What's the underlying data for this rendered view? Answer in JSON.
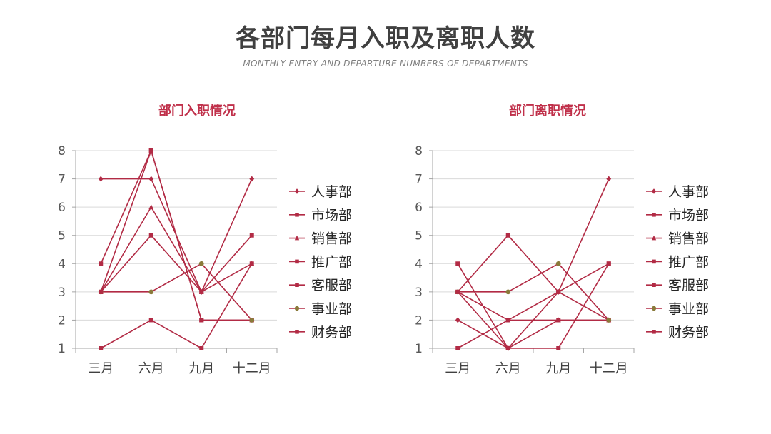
{
  "header": {
    "title": "各部门每月入职及离职人数",
    "subtitle": "MONTHLY ENTRY AND DEPARTURE NUMBERS OF DEPARTMENTS"
  },
  "colors": {
    "line": "#b22b45",
    "marker": "#b22b45",
    "marker_alt": "#8a7a3a",
    "axis": "#a6a6a6",
    "grid": "#d9d9d9",
    "tick_text": "#595959",
    "chart_title": "#c0304a"
  },
  "chart_data": [
    {
      "type": "line",
      "title": "部门入职情况",
      "categories": [
        "三月",
        "六月",
        "九月",
        "十二月"
      ],
      "ylim": [
        1,
        8
      ],
      "yticks": [
        1,
        2,
        3,
        4,
        5,
        6,
        7,
        8
      ],
      "grid": true,
      "legend_position": "right",
      "series": [
        {
          "name": "人事部",
          "marker": "diamond",
          "values": [
            7,
            7,
            3,
            7
          ]
        },
        {
          "name": "市场部",
          "marker": "square",
          "values": [
            3,
            8,
            2,
            2
          ]
        },
        {
          "name": "销售部",
          "marker": "triangle",
          "values": [
            3,
            6,
            3,
            4
          ]
        },
        {
          "name": "推广部",
          "marker": "square",
          "values": [
            4,
            8,
            2,
            2
          ]
        },
        {
          "name": "客服部",
          "marker": "square",
          "values": [
            1,
            2,
            1,
            4
          ]
        },
        {
          "name": "事业部",
          "marker": "circle",
          "values": [
            3,
            3,
            4,
            2
          ]
        },
        {
          "name": "财务部",
          "marker": "square",
          "values": [
            3,
            5,
            3,
            5
          ]
        }
      ]
    },
    {
      "type": "line",
      "title": "部门离职情况",
      "categories": [
        "三月",
        "六月",
        "九月",
        "十二月"
      ],
      "ylim": [
        1,
        8
      ],
      "yticks": [
        1,
        2,
        3,
        4,
        5,
        6,
        7,
        8
      ],
      "grid": true,
      "legend_position": "right",
      "series": [
        {
          "name": "人事部",
          "marker": "diamond",
          "values": [
            2,
            1,
            3,
            7
          ]
        },
        {
          "name": "市场部",
          "marker": "square",
          "values": [
            4,
            1,
            2,
            2
          ]
        },
        {
          "name": "销售部",
          "marker": "triangle",
          "values": [
            3,
            2,
            2,
            2
          ]
        },
        {
          "name": "推广部",
          "marker": "square",
          "values": [
            1,
            2,
            3,
            4
          ]
        },
        {
          "name": "客服部",
          "marker": "square",
          "values": [
            3,
            5,
            3,
            2
          ]
        },
        {
          "name": "事业部",
          "marker": "circle",
          "values": [
            3,
            3,
            4,
            2
          ]
        },
        {
          "name": "财务部",
          "marker": "square",
          "values": [
            3,
            1,
            1,
            4
          ]
        }
      ]
    }
  ]
}
